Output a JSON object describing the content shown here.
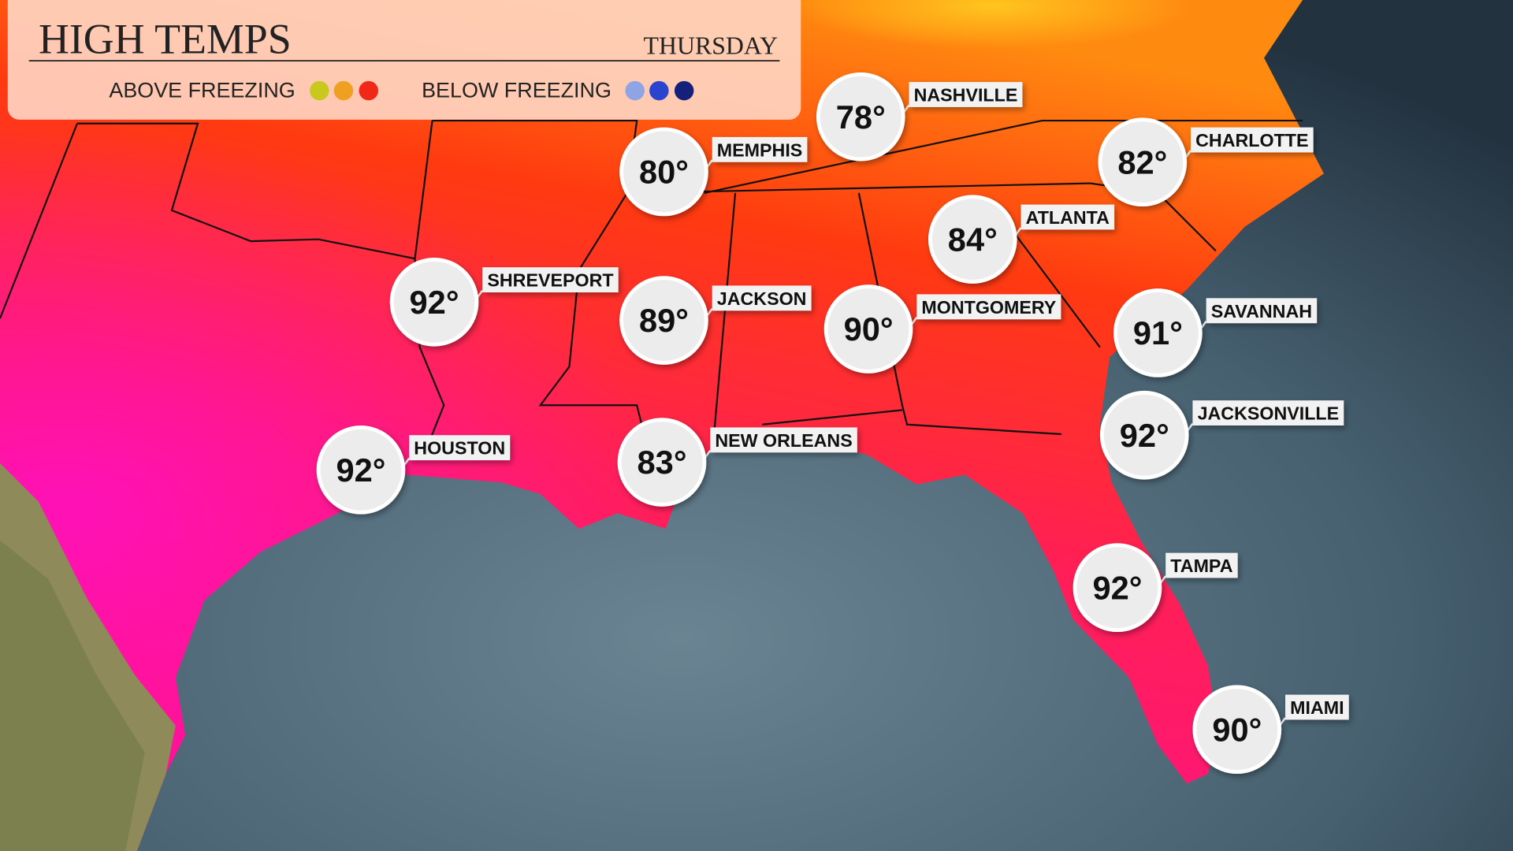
{
  "header": {
    "title": "HIGH TEMPS",
    "day": "THURSDAY",
    "legend": {
      "above": "ABOVE FREEZING",
      "below": "BELOW FREEZING"
    }
  },
  "cities": [
    {
      "name": "NASHVILLE",
      "temp": "78°"
    },
    {
      "name": "MEMPHIS",
      "temp": "80°"
    },
    {
      "name": "CHARLOTTE",
      "temp": "82°"
    },
    {
      "name": "ATLANTA",
      "temp": "84°"
    },
    {
      "name": "SHREVEPORT",
      "temp": "92°"
    },
    {
      "name": "JACKSON",
      "temp": "89°"
    },
    {
      "name": "MONTGOMERY",
      "temp": "90°"
    },
    {
      "name": "SAVANNAH",
      "temp": "91°"
    },
    {
      "name": "JACKSONVILLE",
      "temp": "92°"
    },
    {
      "name": "HOUSTON",
      "temp": "92°"
    },
    {
      "name": "NEW ORLEANS",
      "temp": "83°"
    },
    {
      "name": "TAMPA",
      "temp": "92°"
    },
    {
      "name": "MIAMI",
      "temp": "90°"
    }
  ]
}
